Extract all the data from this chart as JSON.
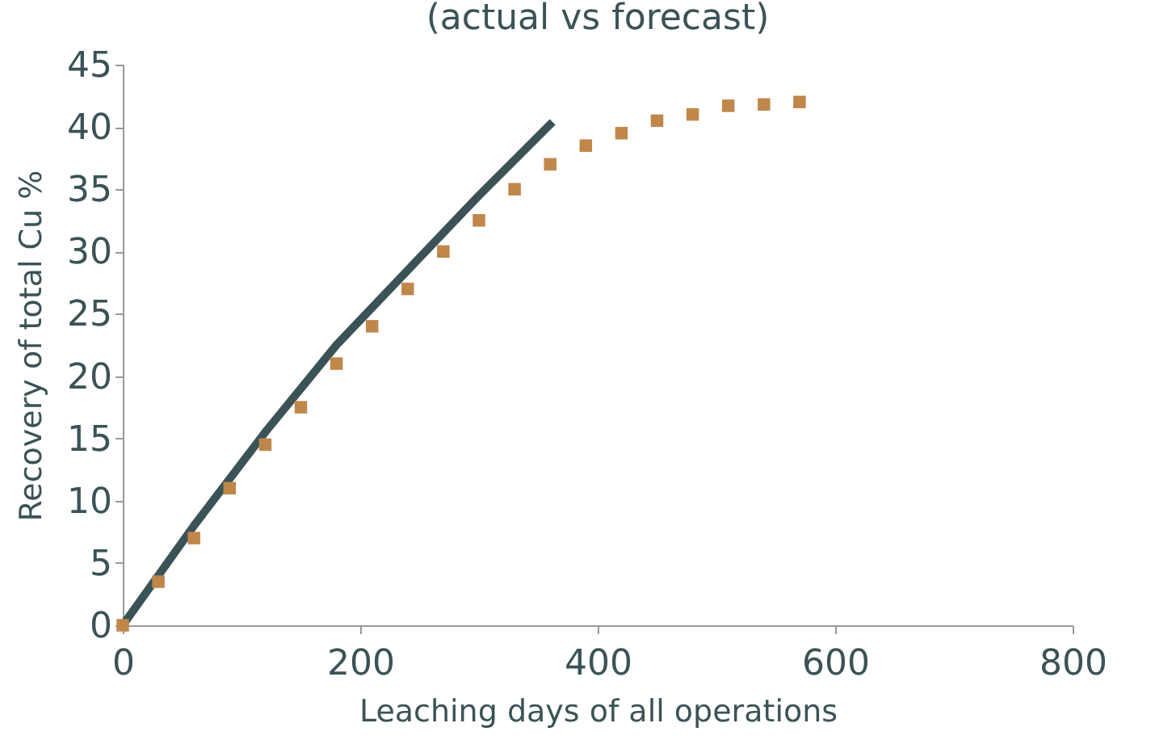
{
  "chart_data": {
    "type": "scatter",
    "title": "(actual vs forecast)",
    "xlabel": "Leaching days of all operations",
    "ylabel": "Recovery of total Cu %",
    "series": [
      {
        "type": "line",
        "color": "#3b5357",
        "x": [
          0,
          60,
          120,
          180,
          240,
          300,
          362
        ],
        "values": [
          0,
          8,
          15.5,
          22.5,
          28.5,
          34.5,
          40.4
        ],
        "marker": "none"
      },
      {
        "color": "#c0874a",
        "marker": "square",
        "x": [
          0,
          30,
          60,
          90,
          120,
          150,
          180,
          210,
          240,
          270,
          300,
          330,
          360,
          390,
          420,
          450,
          480,
          510,
          540,
          570
        ],
        "values": [
          0,
          3.5,
          7,
          11,
          14.5,
          17.5,
          21,
          24,
          27,
          30,
          32.5,
          35,
          37,
          38.5,
          39.5,
          40.5,
          41,
          41.7,
          41.8,
          42
        ]
      }
    ],
    "xlim": [
      0,
      800
    ],
    "xticks": [
      0,
      200,
      400,
      600,
      800
    ],
    "ylim": [
      0,
      45
    ],
    "yticks": [
      0,
      5,
      10,
      15,
      20,
      25,
      30,
      35,
      40,
      45
    ],
    "grid": false,
    "legend": false
  }
}
